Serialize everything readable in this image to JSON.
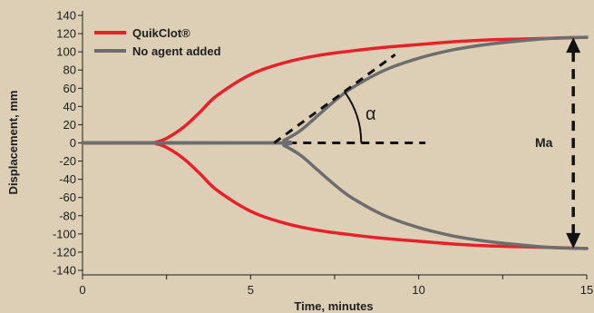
{
  "chart_data": {
    "type": "line",
    "xlabel": "Time, minutes",
    "ylabel": "Displacement, mm",
    "xlim": [
      0,
      15
    ],
    "ylim": [
      -145,
      145
    ],
    "x_ticks": [
      0,
      5,
      10,
      15
    ],
    "x_minor_ticks": [
      2.5,
      7.5,
      12.5
    ],
    "y_ticks": [
      -140,
      -120,
      -100,
      -80,
      -60,
      -40,
      -20,
      0,
      20,
      40,
      60,
      80,
      100,
      120,
      140
    ],
    "grid": false,
    "legend_position": "top-left",
    "series": [
      {
        "name": "QuikClot®",
        "color": "#e8202a",
        "x": [
          0,
          2,
          2.2,
          2.5,
          3,
          3.5,
          4,
          5,
          6,
          7,
          8,
          9,
          10,
          11,
          12,
          13,
          14,
          15
        ],
        "upper": [
          0,
          0,
          1,
          5,
          17,
          34,
          52,
          75,
          88,
          96,
          101,
          105,
          108,
          111,
          113,
          114,
          115,
          116
        ],
        "lower": [
          0,
          0,
          -1,
          -5,
          -17,
          -34,
          -52,
          -75,
          -88,
          -96,
          -101,
          -105,
          -108,
          -111,
          -113,
          -114,
          -115,
          -116
        ]
      },
      {
        "name": "No agent added",
        "color": "#6d6d6d",
        "x": [
          0,
          5.7,
          6,
          6.5,
          7,
          7.5,
          8,
          9,
          10,
          11,
          12,
          13,
          14,
          15
        ],
        "upper": [
          0,
          0,
          3,
          14,
          30,
          46,
          60,
          80,
          93,
          102,
          108,
          112,
          115,
          116
        ],
        "lower": [
          0,
          0,
          -3,
          -14,
          -30,
          -46,
          -60,
          -80,
          -93,
          -102,
          -108,
          -112,
          -115,
          -116
        ]
      }
    ],
    "annotations": {
      "angle_label": "α",
      "ma_label": "Ma",
      "tangent_line": {
        "from": [
          5.7,
          0
        ],
        "to": [
          9.3,
          97
        ]
      },
      "baseline_line": {
        "from": [
          5.7,
          0
        ],
        "to": [
          10.2,
          0
        ]
      },
      "ma_arrow": {
        "x": 14.6,
        "from": 116,
        "to": -116
      }
    }
  }
}
